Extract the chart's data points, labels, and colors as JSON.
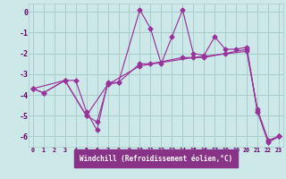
{
  "background_color": "#cce8e8",
  "grid_color": "#aacccc",
  "line_color": "#993399",
  "xlabel": "Windchill (Refroidissement éolien,°C)",
  "xlabel_color": "white",
  "xlabel_bg": "#883388",
  "tick_color": "#660066",
  "xlim": [
    -0.4,
    23.4
  ],
  "ylim": [
    -6.5,
    0.4
  ],
  "yticks": [
    0,
    -1,
    -2,
    -3,
    -4,
    -5,
    -6
  ],
  "xticks": [
    0,
    1,
    2,
    3,
    4,
    5,
    6,
    7,
    8,
    9,
    10,
    11,
    12,
    13,
    14,
    15,
    16,
    17,
    18,
    19,
    20,
    21,
    22,
    23
  ],
  "series1_x": [
    0,
    1,
    3,
    4,
    5,
    6,
    7,
    8,
    10,
    11,
    12,
    13,
    14,
    15,
    16,
    17,
    18,
    19,
    20,
    21,
    22,
    23
  ],
  "series1_y": [
    -3.7,
    -3.9,
    -3.3,
    -3.3,
    -4.8,
    -5.7,
    -3.4,
    -3.4,
    0.1,
    -0.8,
    -2.5,
    -1.2,
    0.1,
    -2.0,
    -2.1,
    -1.2,
    -1.8,
    -1.8,
    -1.7,
    -4.8,
    -6.3,
    -6.0
  ],
  "series2_x": [
    0,
    1,
    3,
    5,
    6,
    7,
    8,
    10,
    11,
    14,
    16,
    18,
    20,
    21,
    22,
    23
  ],
  "series2_y": [
    -3.7,
    -3.9,
    -3.3,
    -5.0,
    -5.3,
    -3.5,
    -3.4,
    -2.5,
    -2.5,
    -2.2,
    -2.2,
    -2.0,
    -1.8,
    -4.8,
    -6.2,
    -6.0
  ],
  "series3_x": [
    0,
    3,
    5,
    7,
    10,
    15,
    20,
    21,
    22,
    23
  ],
  "series3_y": [
    -3.7,
    -3.3,
    -5.0,
    -3.5,
    -2.6,
    -2.2,
    -1.9,
    -4.7,
    -6.2,
    -6.0
  ]
}
